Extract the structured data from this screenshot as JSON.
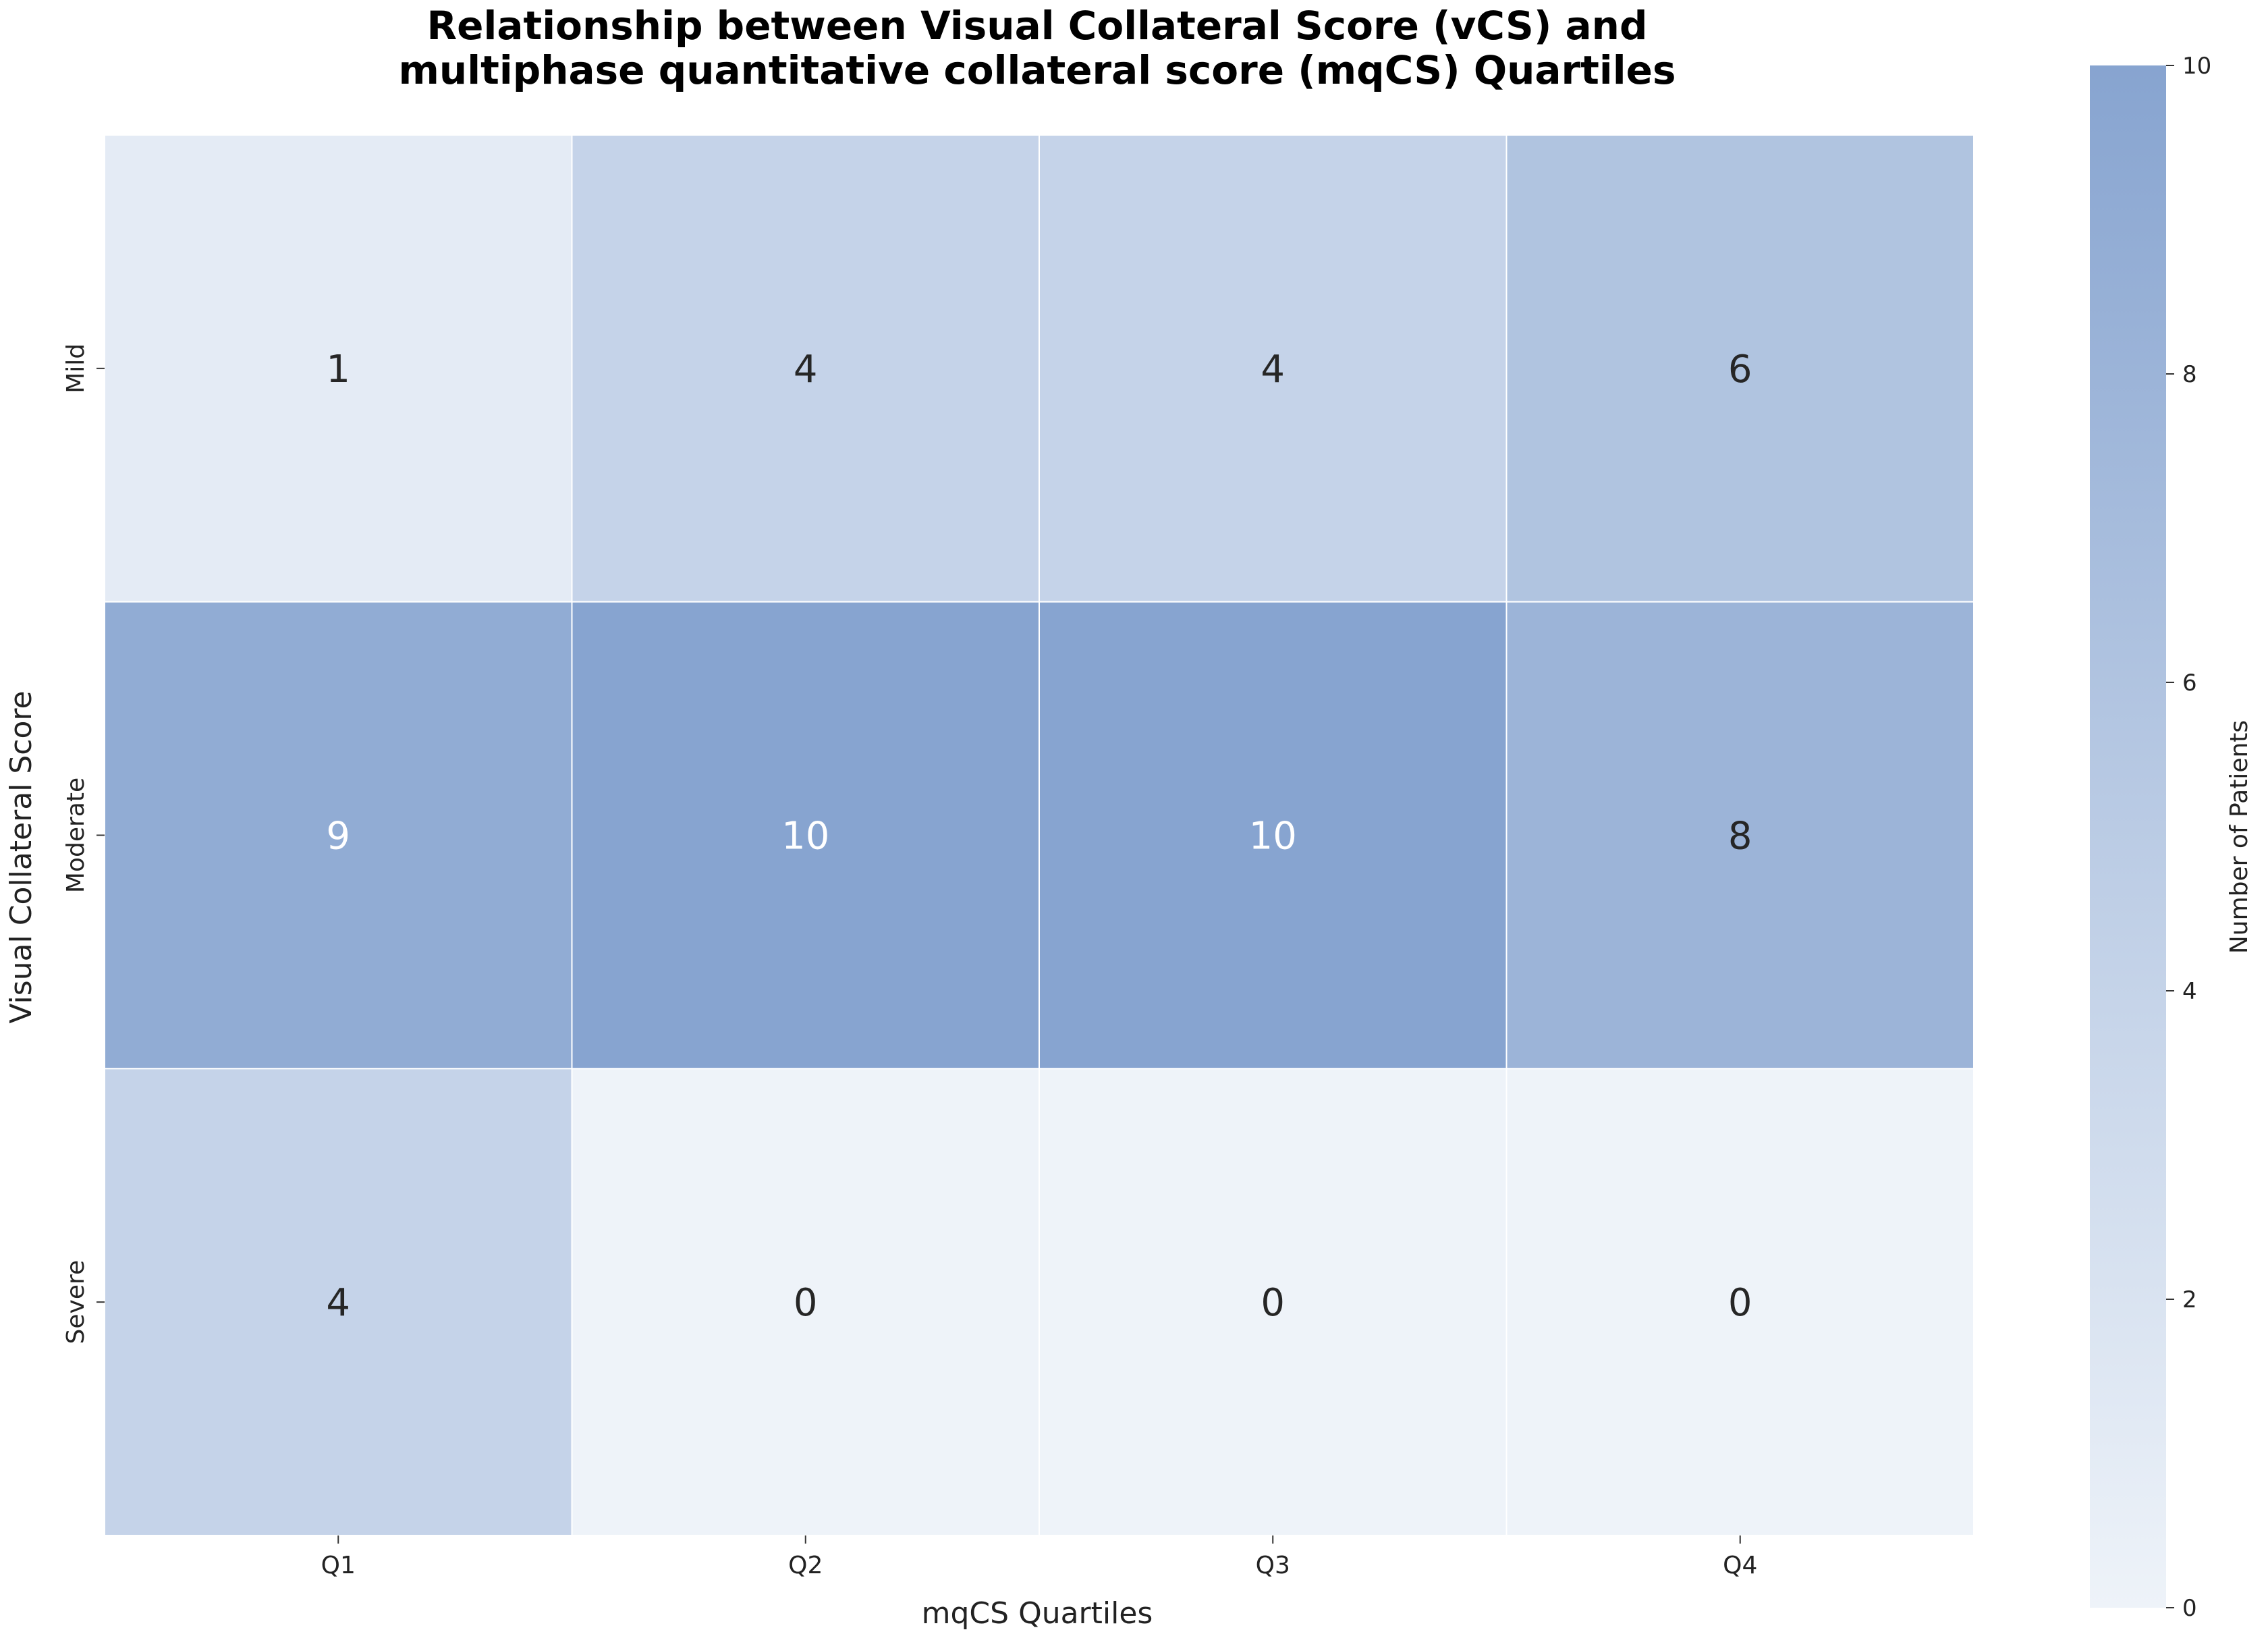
{
  "chart_data": {
    "type": "heatmap",
    "title_lines": [
      "Relationship between Visual Collateral Score (vCS) and",
      "multiphase quantitative collateral score (mqCS) Quartiles"
    ],
    "xlabel": "mqCS Quartiles",
    "ylabel": "Visual Collateral Score",
    "x_categories": [
      "Q1",
      "Q2",
      "Q3",
      "Q4"
    ],
    "y_categories": [
      "Mild",
      "Moderate",
      "Severe"
    ],
    "values": [
      [
        1,
        4,
        4,
        6
      ],
      [
        9,
        10,
        10,
        8
      ],
      [
        4,
        0,
        0,
        0
      ]
    ],
    "colorbar": {
      "label": "Number of Patients",
      "range": [
        0,
        10
      ],
      "ticks": [
        0,
        2,
        4,
        6,
        8,
        10
      ],
      "low_color": "#eef3f9",
      "high_color": "#87a4d0"
    },
    "annotation_colors": {
      "dark_text": "#262626",
      "light_text": "#ffffff"
    }
  }
}
